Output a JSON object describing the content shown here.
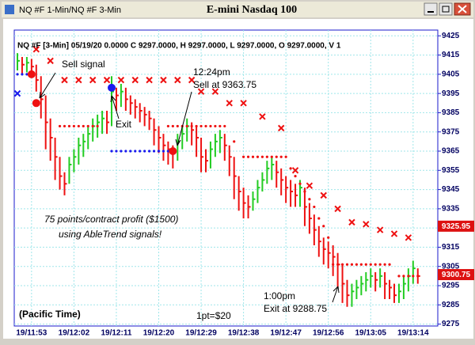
{
  "window": {
    "title": "NQ #F 1-Min/NQ #F 3-Min"
  },
  "chart_data": {
    "type": "ohlc",
    "title": "E-mini Nasdaq 100",
    "info_line": "NQ #F [3-Min] 05/19/20  0.0000 C 9297.0000, H 9297.0000, L 9297.0000, O 9297.0000, V 1",
    "categories": [
      null,
      null,
      null,
      "19/11:53",
      null,
      null,
      null,
      null,
      null,
      null,
      null,
      null,
      "19/12:02",
      null,
      null,
      null,
      null,
      null,
      null,
      null,
      null,
      "19/12:11",
      null,
      null,
      null,
      null,
      null,
      null,
      null,
      null,
      "19/12:20",
      null,
      null,
      null,
      null,
      null,
      null,
      null,
      null,
      "19/12:29",
      null,
      null,
      null,
      null,
      null,
      null,
      null,
      null,
      "19/12:38",
      null,
      null,
      null,
      null,
      null,
      null,
      null,
      null,
      "19/12:47",
      null,
      null,
      null,
      null,
      null,
      null,
      null,
      null,
      "19/12:56",
      null,
      null,
      null,
      null,
      null,
      null,
      null,
      null,
      "19/13:05",
      null,
      null,
      null,
      null,
      null,
      null,
      null,
      null,
      "19/13:14",
      null
    ],
    "high": [
      9416,
      9414,
      9414,
      9413,
      9410,
      9404,
      9394,
      9382,
      9372,
      9362,
      9354,
      9362,
      9366,
      9372,
      9374,
      9378,
      9382,
      9384,
      9386,
      9386,
      9404,
      9398,
      9400,
      9398,
      9394,
      9392,
      9390,
      9388,
      9386,
      9382,
      9378,
      9374,
      9370,
      9368,
      9374,
      9378,
      9382,
      9380,
      9378,
      9372,
      9366,
      9370,
      9374,
      9376,
      9374,
      9368,
      9362,
      9352,
      9346,
      9342,
      9344,
      9350,
      9354,
      9360,
      9362,
      9360,
      9356,
      9352,
      9350,
      9348,
      9350,
      9346,
      9338,
      9332,
      9326,
      9320,
      9318,
      9316,
      9312,
      9306,
      9298,
      9296,
      9298,
      9300,
      9302,
      9304,
      9302,
      9304,
      9302,
      9298,
      9296,
      9296,
      9300,
      9304,
      9308,
      9304
    ],
    "low": [
      9407,
      9405,
      9406,
      9404,
      9396,
      9382,
      9366,
      9360,
      9350,
      9345,
      9342,
      9348,
      9354,
      9358,
      9362,
      9366,
      9370,
      9372,
      9374,
      9374,
      9378,
      9386,
      9388,
      9386,
      9384,
      9382,
      9380,
      9378,
      9376,
      9368,
      9364,
      9360,
      9358,
      9356,
      9360,
      9366,
      9370,
      9368,
      9362,
      9354,
      9354,
      9356,
      9362,
      9364,
      9360,
      9352,
      9340,
      9334,
      9330,
      9330,
      9334,
      9338,
      9344,
      9348,
      9350,
      9346,
      9342,
      9338,
      9336,
      9336,
      9336,
      9326,
      9322,
      9316,
      9310,
      9306,
      9304,
      9300,
      9294,
      9286,
      9284,
      9284,
      9288,
      9290,
      9292,
      9294,
      9292,
      9294,
      9288,
      9288,
      9286,
      9286,
      9288,
      9292,
      9296,
      9296
    ],
    "close": [
      9412,
      9410,
      9411,
      9409,
      9402,
      9392,
      9380,
      9372,
      9362,
      9352,
      9348,
      9358,
      9362,
      9368,
      9370,
      9374,
      9378,
      9380,
      9382,
      9380,
      9396,
      9394,
      9396,
      9392,
      9390,
      9388,
      9386,
      9384,
      9382,
      9376,
      9372,
      9368,
      9366,
      9364,
      9370,
      9374,
      9378,
      9376,
      9372,
      9362,
      9360,
      9366,
      9370,
      9372,
      9368,
      9362,
      9352,
      9344,
      9338,
      9336,
      9340,
      9346,
      9350,
      9356,
      9358,
      9354,
      9350,
      9346,
      9344,
      9342,
      9346,
      9336,
      9330,
      9324,
      9318,
      9314,
      9312,
      9310,
      9306,
      9296,
      9290,
      9292,
      9294,
      9296,
      9298,
      9300,
      9298,
      9300,
      9296,
      9294,
      9290,
      9292,
      9296,
      9300,
      9304,
      9300
    ],
    "up_color": "#22cc22",
    "down_color": "#ee1111",
    "red_x": [
      null,
      null,
      null,
      null,
      9418,
      null,
      null,
      9412,
      null,
      null,
      9402,
      null,
      null,
      9402,
      null,
      null,
      9402,
      null,
      null,
      9402,
      null,
      null,
      9402,
      null,
      null,
      9402,
      null,
      null,
      9402,
      null,
      null,
      9402,
      null,
      null,
      9402,
      null,
      null,
      9402,
      null,
      9396,
      null,
      null,
      9396,
      null,
      null,
      9390,
      null,
      null,
      9390,
      null,
      null,
      null,
      9383,
      null,
      null,
      null,
      9377,
      null,
      null,
      9355,
      null,
      null,
      9347,
      null,
      null,
      9342,
      null,
      null,
      9335,
      null,
      null,
      9328,
      null,
      null,
      9327,
      null,
      null,
      9324,
      null,
      null,
      9322,
      null,
      null,
      9320,
      null,
      null
    ],
    "red_dots": [
      null,
      null,
      null,
      null,
      null,
      null,
      null,
      null,
      null,
      9378,
      9378,
      9378,
      9378,
      9378,
      9378,
      9378,
      9378,
      9378,
      null,
      null,
      null,
      null,
      null,
      null,
      null,
      null,
      null,
      null,
      null,
      null,
      null,
      null,
      9378,
      9378,
      9378,
      9378,
      9378,
      9378,
      9378,
      9378,
      9378,
      9378,
      9378,
      9378,
      9378,
      null,
      9370,
      null,
      9362,
      9362,
      9362,
      9362,
      9362,
      9362,
      9362,
      9362,
      9362,
      9362,
      9356,
      9352,
      9348,
      9344,
      9340,
      9336,
      9330,
      9326,
      9320,
      9306,
      9306,
      9306,
      9306,
      9306,
      9306,
      9306,
      9306,
      9306,
      9306,
      9306,
      9306,
      9306,
      null,
      9300,
      9300,
      9300,
      9300,
      9300
    ],
    "blue_dots": [
      9405,
      9405,
      9405,
      9405,
      null,
      null,
      null,
      null,
      null,
      null,
      null,
      null,
      null,
      null,
      null,
      null,
      null,
      null,
      null,
      null,
      9365,
      9365,
      9365,
      9365,
      9365,
      9365,
      9365,
      9365,
      9365,
      9365,
      9365,
      9365,
      9365,
      9365,
      null,
      null,
      null,
      null,
      null,
      null,
      null,
      null,
      null,
      null,
      null,
      null,
      null,
      null,
      null,
      null,
      null,
      null,
      null,
      null,
      null,
      null,
      null,
      null,
      null,
      null,
      null,
      null,
      null,
      null,
      null,
      null,
      null,
      null,
      null,
      null,
      null,
      null,
      null,
      null,
      null,
      null,
      null,
      null,
      null,
      null,
      null,
      null,
      null,
      null,
      null,
      null
    ],
    "blue_x": [
      9395,
      null,
      null,
      null,
      null,
      null,
      null,
      null,
      null,
      null,
      null,
      null,
      null,
      null,
      null,
      null,
      null,
      null,
      null,
      null,
      null,
      null,
      null,
      null,
      null,
      null,
      null,
      null,
      null,
      null,
      null,
      null,
      null,
      null,
      null,
      null,
      null,
      null,
      null,
      null,
      null,
      null,
      null,
      null,
      null,
      null,
      null,
      null,
      null,
      null,
      null,
      null,
      null,
      null,
      null,
      null,
      null,
      null,
      null,
      null,
      null,
      null,
      null,
      null,
      null,
      null,
      null,
      null,
      null,
      null,
      null,
      null,
      null,
      null,
      null,
      null,
      null,
      null,
      null,
      null,
      null,
      null,
      null,
      null,
      null,
      null
    ],
    "sell_signals": [
      null,
      null,
      null,
      9405,
      9390,
      null,
      null,
      null,
      null,
      null,
      null,
      null,
      null,
      null,
      null,
      null,
      null,
      null,
      null,
      null,
      null,
      null,
      null,
      null,
      null,
      null,
      null,
      null,
      null,
      null,
      null,
      null,
      null,
      9365,
      null,
      null,
      null,
      null,
      null,
      null,
      null,
      null,
      null,
      null,
      null,
      null,
      null,
      null,
      null,
      null,
      null,
      null,
      null,
      null,
      null,
      null,
      null,
      null,
      null,
      null,
      null,
      null,
      null,
      null,
      null,
      null,
      null,
      null,
      null,
      null,
      null,
      null,
      null,
      null,
      null,
      null,
      null,
      null,
      null,
      null,
      null,
      null,
      null,
      null,
      null,
      null
    ],
    "exit_signals": [
      null,
      null,
      null,
      null,
      null,
      null,
      null,
      null,
      null,
      null,
      null,
      null,
      null,
      null,
      null,
      null,
      null,
      null,
      null,
      null,
      9398,
      null,
      null,
      null,
      null,
      null,
      null,
      null,
      null,
      null,
      null,
      null,
      null,
      null,
      null,
      null,
      null,
      null,
      null,
      null,
      null,
      null,
      null,
      null,
      null,
      null,
      null,
      null,
      null,
      null,
      null,
      null,
      null,
      null,
      null,
      null,
      null,
      null,
      null,
      null,
      null,
      null,
      null,
      null,
      null,
      null,
      null,
      null,
      null,
      null,
      null,
      null,
      null,
      null,
      null,
      null,
      null,
      null,
      null,
      null,
      null,
      null,
      null,
      null,
      null,
      null
    ],
    "price_markers": [
      9325.95,
      9300.75
    ],
    "ylim": [
      9274,
      9428
    ],
    "yticks": [
      9425,
      9415,
      9405,
      9395,
      9385,
      9375,
      9365,
      9355,
      9345,
      9335,
      9325,
      9315,
      9305,
      9295,
      9285,
      9275
    ],
    "grid": true,
    "annotations": [
      "Sell signal",
      "Exit",
      "12:24pm",
      "Sell at 9363.75",
      "75 points/contract profit ($1500)",
      "using AbleTrend signals!",
      "1:00pm",
      "Exit at 9288.75",
      "(Pacific Time)",
      "1pt=$20"
    ]
  }
}
